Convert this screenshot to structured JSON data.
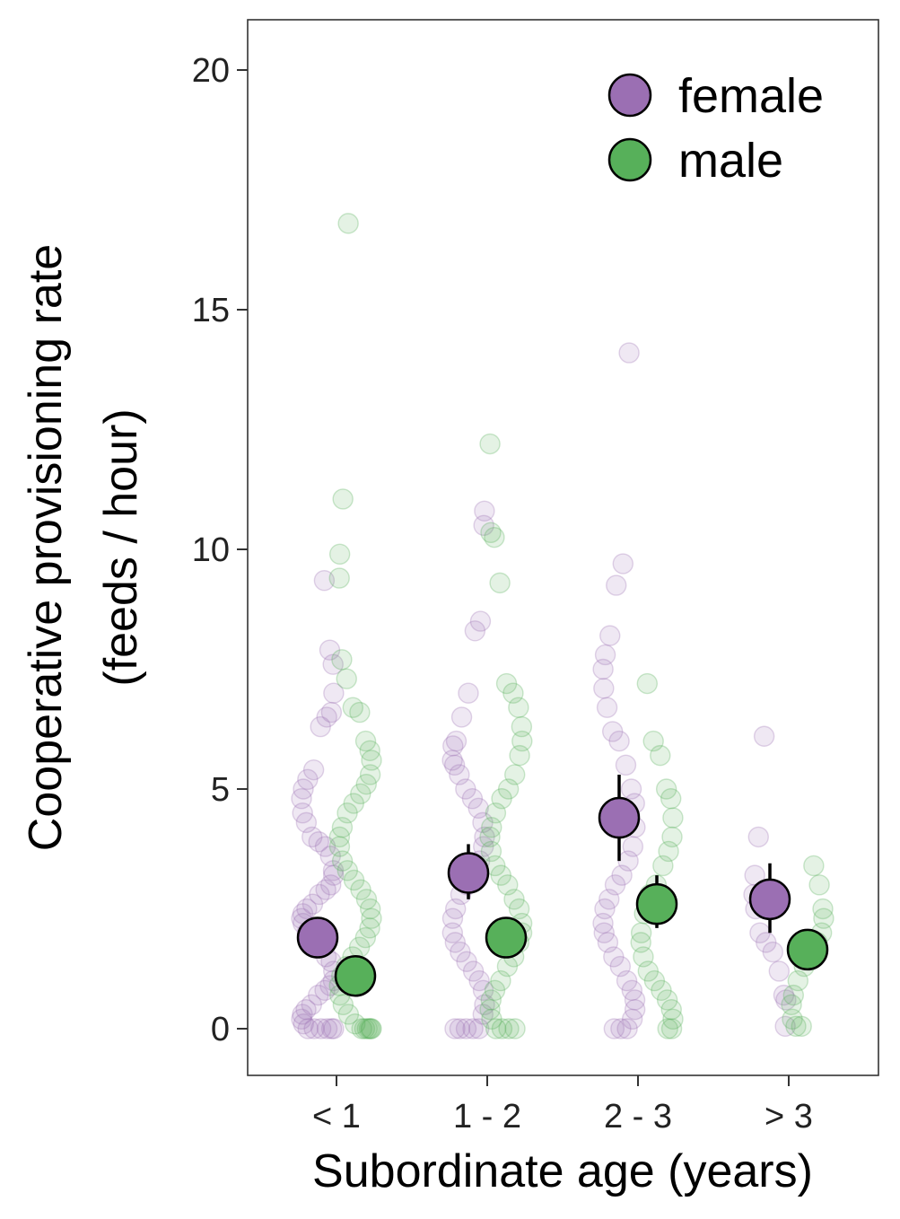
{
  "chart_data": {
    "type": "scatter",
    "xlabel": "Subordinate age (years)",
    "ylabel_lines": [
      "Cooperative provisioning rate",
      "(feeds / hour)"
    ],
    "categories": [
      "< 1",
      "1 - 2",
      "2 - 3",
      "> 3"
    ],
    "ylim": [
      -1,
      21
    ],
    "yticks": [
      0,
      5,
      10,
      15,
      20
    ],
    "grid": false,
    "legend_position": "top-right",
    "colors": {
      "female": "#9b6fb3",
      "male": "#57b05a"
    },
    "series": [
      {
        "name": "female",
        "color": "#9b6fb3",
        "means": [
          1.9,
          3.25,
          4.4,
          2.7
        ],
        "ci_low": [
          1.6,
          2.7,
          3.5,
          2.0
        ],
        "ci_high": [
          2.2,
          3.85,
          5.3,
          3.45
        ],
        "raw_points": [
          [
            9.35,
            7.9,
            7.6,
            7.0,
            6.6,
            6.5,
            6.3,
            5.4,
            5.2,
            5.0,
            4.8,
            4.5,
            4.3,
            4.0,
            3.9,
            3.8,
            3.6,
            3.3,
            3.2,
            3.0,
            2.9,
            2.8,
            2.6,
            2.5,
            2.4,
            2.3,
            2.2,
            2.0,
            1.8,
            1.7,
            1.5,
            1.4,
            1.2,
            1.0,
            0.9,
            0.8,
            0.7,
            0.5,
            0.4,
            0.3,
            0.2,
            0.1,
            0.0,
            0.0,
            0.0,
            0.0,
            0.0,
            0.0
          ],
          [
            10.8,
            10.5,
            8.5,
            8.3,
            7.0,
            6.5,
            6.0,
            5.9,
            5.6,
            5.5,
            5.3,
            5.0,
            4.8,
            4.6,
            4.3,
            4.0,
            3.8,
            3.5,
            3.3,
            3.0,
            2.8,
            2.5,
            2.3,
            2.0,
            1.8,
            1.6,
            1.4,
            1.2,
            1.0,
            0.8,
            0.5,
            0.3,
            0.0,
            0.0,
            0.0,
            0.0,
            0.0
          ],
          [
            14.1,
            9.7,
            9.25,
            8.2,
            7.8,
            7.5,
            7.1,
            6.7,
            6.2,
            6.0,
            5.5,
            5.0,
            4.7,
            4.2,
            3.8,
            3.5,
            3.2,
            3.0,
            2.7,
            2.5,
            2.2,
            2.0,
            1.8,
            1.5,
            1.3,
            1.0,
            0.8,
            0.6,
            0.4,
            0.2,
            0.0,
            0.0,
            0.0
          ],
          [
            6.1,
            4.0,
            3.2,
            2.8,
            2.5,
            2.0,
            1.8,
            1.6,
            1.2,
            0.7,
            0.6,
            0.05
          ]
        ]
      },
      {
        "name": "male",
        "color": "#57b05a",
        "means": [
          1.1,
          1.9,
          2.6,
          1.65
        ],
        "ci_low": [
          0.95,
          1.7,
          2.1,
          1.45
        ],
        "ci_high": [
          1.25,
          2.1,
          3.2,
          1.85
        ],
        "raw_points": [
          [
            16.8,
            11.05,
            9.9,
            9.4,
            7.7,
            7.3,
            6.7,
            6.6,
            6.0,
            5.8,
            5.6,
            5.3,
            5.1,
            4.9,
            4.7,
            4.5,
            4.2,
            4.0,
            3.8,
            3.5,
            3.3,
            3.1,
            2.9,
            2.7,
            2.5,
            2.3,
            2.1,
            1.9,
            1.7,
            1.5,
            1.3,
            1.1,
            0.9,
            0.7,
            0.5,
            0.3,
            0.1,
            0.0,
            0.0,
            0.0,
            0.0,
            0.0,
            0.0
          ],
          [
            12.2,
            10.35,
            10.25,
            9.3,
            7.2,
            7.0,
            6.7,
            6.3,
            6.0,
            5.7,
            5.3,
            5.0,
            4.8,
            4.5,
            4.2,
            4.0,
            3.7,
            3.4,
            3.2,
            3.0,
            2.7,
            2.5,
            2.2,
            2.0,
            1.8,
            1.5,
            1.3,
            1.0,
            0.8,
            0.6,
            0.4,
            0.2,
            0.0,
            0.0,
            0.0,
            0.0
          ],
          [
            7.2,
            6.0,
            5.7,
            5.0,
            4.8,
            4.4,
            4.0,
            3.7,
            3.4,
            3.0,
            2.8,
            2.4,
            2.0,
            1.8,
            1.5,
            1.2,
            1.0,
            0.8,
            0.6,
            0.4,
            0.2,
            0.0,
            0.0
          ],
          [
            3.4,
            3.0,
            2.5,
            2.3,
            2.0,
            1.8,
            1.5,
            1.3,
            1.0,
            0.7,
            0.5,
            0.2,
            0.05,
            0.05
          ]
        ]
      }
    ]
  }
}
